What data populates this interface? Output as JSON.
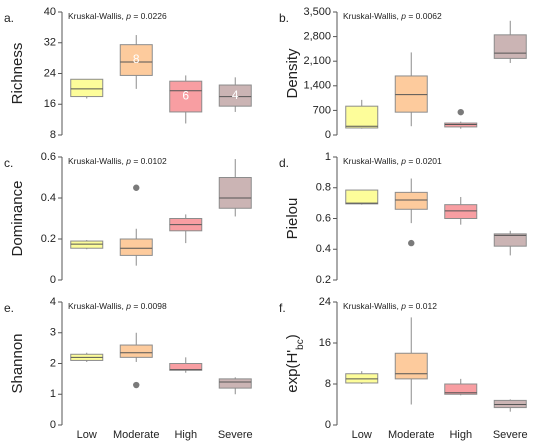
{
  "figure": {
    "categories": [
      "Low",
      "Moderate",
      "High",
      "Severe"
    ],
    "colors": [
      "#fdfd9a",
      "#fdcb9d",
      "#f89ea2",
      "#cbb4b4"
    ]
  },
  "chart_data": [
    {
      "type": "box",
      "panel": "a.",
      "ylabel": "Richness",
      "annotation": {
        "prefix": "Kruskal-Wallis, ",
        "p_symbol": "p",
        "suffix": " = 0.0226"
      },
      "yticks": [
        8,
        16,
        24,
        32,
        40
      ],
      "tick_labels": [
        "8",
        "16",
        "24",
        "32",
        "40"
      ],
      "ylim": [
        8,
        40
      ],
      "categories": [
        "Low",
        "Moderate",
        "High",
        "Severe"
      ],
      "boxes": [
        {
          "min": 17.5,
          "q1": 18,
          "median": 20,
          "q3": 22.5,
          "max": 22.5,
          "outliers": [],
          "label": ""
        },
        {
          "min": 20,
          "q1": 23.5,
          "median": 27,
          "q3": 31.5,
          "max": 34,
          "outliers": [],
          "label": "8"
        },
        {
          "min": 11,
          "q1": 14,
          "median": 19.5,
          "q3": 22,
          "max": 23.5,
          "outliers": [],
          "label": "6"
        },
        {
          "min": 14,
          "q1": 15.5,
          "median": 18,
          "q3": 21,
          "max": 23,
          "outliers": [],
          "label": "4"
        }
      ]
    },
    {
      "type": "box",
      "panel": "b.",
      "ylabel": "Density",
      "annotation": {
        "prefix": "Kruskal-Wallis, ",
        "p_symbol": "p",
        "suffix": " = 0.0062"
      },
      "yticks": [
        0,
        700,
        1400,
        2100,
        2800,
        3500
      ],
      "tick_labels": [
        "0",
        "700",
        "1,400",
        "2,100",
        "2,800",
        "3,500"
      ],
      "ylim": [
        0,
        3500
      ],
      "categories": [
        "Low",
        "Moderate",
        "High",
        "Severe"
      ],
      "boxes": [
        {
          "min": 180,
          "q1": 200,
          "median": 250,
          "q3": 820,
          "max": 1000,
          "outliers": [],
          "label": ""
        },
        {
          "min": 250,
          "q1": 650,
          "median": 1150,
          "q3": 1680,
          "max": 2350,
          "outliers": [],
          "label": ""
        },
        {
          "min": 180,
          "q1": 230,
          "median": 300,
          "q3": 340,
          "max": 380,
          "outliers": [
            650
          ],
          "label": ""
        },
        {
          "min": 2050,
          "q1": 2180,
          "median": 2330,
          "q3": 2850,
          "max": 3250,
          "outliers": [],
          "label": ""
        }
      ]
    },
    {
      "type": "box",
      "panel": "c.",
      "ylabel": "Dominance",
      "annotation": {
        "prefix": "Kruskal-Wallis, ",
        "p_symbol": "p",
        "suffix": " = 0.0102"
      },
      "yticks": [
        0,
        0.2,
        0.4,
        0.6
      ],
      "tick_labels": [
        "0",
        "0.2",
        "0.4",
        "0.6"
      ],
      "ylim": [
        0,
        0.6
      ],
      "categories": [
        "Low",
        "Moderate",
        "High",
        "Severe"
      ],
      "boxes": [
        {
          "min": 0.15,
          "q1": 0.155,
          "median": 0.175,
          "q3": 0.19,
          "max": 0.195,
          "outliers": [],
          "label": ""
        },
        {
          "min": 0.07,
          "q1": 0.12,
          "median": 0.155,
          "q3": 0.2,
          "max": 0.25,
          "outliers": [
            0.45
          ],
          "label": ""
        },
        {
          "min": 0.18,
          "q1": 0.24,
          "median": 0.27,
          "q3": 0.3,
          "max": 0.32,
          "outliers": [],
          "label": ""
        },
        {
          "min": 0.31,
          "q1": 0.35,
          "median": 0.4,
          "q3": 0.5,
          "max": 0.59,
          "outliers": [],
          "label": ""
        }
      ]
    },
    {
      "type": "box",
      "panel": "d.",
      "ylabel": "Pielou",
      "annotation": {
        "prefix": "Kruskal-Wallis, ",
        "p_symbol": "p",
        "suffix": " = 0.0201"
      },
      "yticks": [
        0.2,
        0.4,
        0.6,
        0.8,
        1
      ],
      "tick_labels": [
        "0.2",
        "0.4",
        "0.6",
        "0.8",
        "1"
      ],
      "ylim": [
        0.2,
        1
      ],
      "categories": [
        "Low",
        "Moderate",
        "High",
        "Severe"
      ],
      "boxes": [
        {
          "min": 0.69,
          "q1": 0.695,
          "median": 0.7,
          "q3": 0.785,
          "max": 0.785,
          "outliers": [],
          "label": ""
        },
        {
          "min": 0.57,
          "q1": 0.66,
          "median": 0.72,
          "q3": 0.77,
          "max": 0.86,
          "outliers": [
            0.44
          ],
          "label": ""
        },
        {
          "min": 0.56,
          "q1": 0.6,
          "median": 0.65,
          "q3": 0.69,
          "max": 0.74,
          "outliers": [],
          "label": ""
        },
        {
          "min": 0.36,
          "q1": 0.42,
          "median": 0.49,
          "q3": 0.5,
          "max": 0.52,
          "outliers": [],
          "label": ""
        }
      ]
    },
    {
      "type": "box",
      "panel": "e.",
      "ylabel": "Shannon",
      "annotation": {
        "prefix": "Kruskal-Wallis, ",
        "p_symbol": "p",
        "suffix": " = 0.0098"
      },
      "yticks": [
        0,
        1,
        2,
        3,
        4
      ],
      "tick_labels": [
        "0",
        "1",
        "2",
        "3",
        "4"
      ],
      "ylim": [
        0,
        4
      ],
      "categories": [
        "Low",
        "Moderate",
        "High",
        "Severe"
      ],
      "boxes": [
        {
          "min": 2.05,
          "q1": 2.1,
          "median": 2.2,
          "q3": 2.3,
          "max": 2.35,
          "outliers": [],
          "label": ""
        },
        {
          "min": 2.05,
          "q1": 2.2,
          "median": 2.35,
          "q3": 2.6,
          "max": 3.0,
          "outliers": [
            1.3
          ],
          "label": ""
        },
        {
          "min": 1.7,
          "q1": 1.78,
          "median": 1.8,
          "q3": 2.0,
          "max": 2.2,
          "outliers": [],
          "label": ""
        },
        {
          "min": 1.0,
          "q1": 1.2,
          "median": 1.4,
          "q3": 1.5,
          "max": 1.55,
          "outliers": [],
          "label": ""
        }
      ]
    },
    {
      "type": "box",
      "panel": "f.",
      "ylabel": "exp(H'bc)",
      "ylabel_parts": {
        "main": "exp(H'",
        "sub": "bc",
        "close": ")"
      },
      "annotation": {
        "prefix": "Kruskal-Wallis, ",
        "p_symbol": "p",
        "suffix": " = 0.012"
      },
      "yticks": [
        0,
        8,
        16,
        24
      ],
      "tick_labels": [
        "0",
        "8",
        "16",
        "24"
      ],
      "ylim": [
        0,
        24
      ],
      "categories": [
        "Low",
        "Moderate",
        "High",
        "Severe"
      ],
      "boxes": [
        {
          "min": 8,
          "q1": 8.2,
          "median": 9,
          "q3": 10,
          "max": 10.5,
          "outliers": [],
          "label": ""
        },
        {
          "min": 4,
          "q1": 9,
          "median": 10,
          "q3": 14,
          "max": 21,
          "outliers": [],
          "label": ""
        },
        {
          "min": 5.8,
          "q1": 6,
          "median": 6.3,
          "q3": 8,
          "max": 9,
          "outliers": [],
          "label": ""
        },
        {
          "min": 2.6,
          "q1": 3.4,
          "median": 4,
          "q3": 4.8,
          "max": 5,
          "outliers": [],
          "label": ""
        }
      ]
    }
  ]
}
